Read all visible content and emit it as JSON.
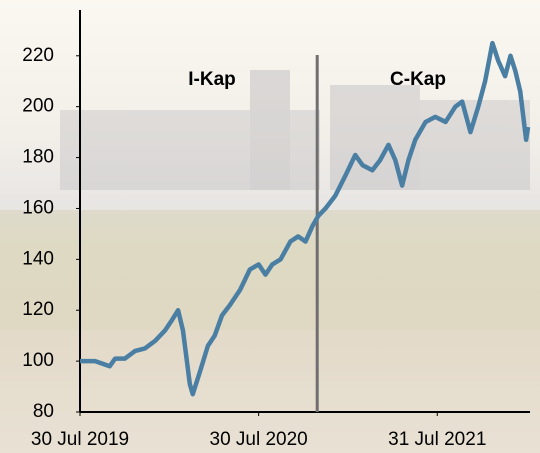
{
  "chart_data": {
    "type": "line",
    "annotations": [
      "I-Kap",
      "C-Kap"
    ],
    "divider_x": "2020-11-27",
    "x": [
      "2019-07-30",
      "2019-08-30",
      "2019-09-29",
      "2019-10-10",
      "2019-10-30",
      "2019-11-20",
      "2019-12-10",
      "2019-12-31",
      "2020-01-20",
      "2020-02-03",
      "2020-02-16",
      "2020-02-26",
      "2020-03-11",
      "2020-03-17",
      "2020-04-01",
      "2020-04-17",
      "2020-05-01",
      "2020-05-16",
      "2020-06-01",
      "2020-06-22",
      "2020-07-12",
      "2020-07-30",
      "2020-08-13",
      "2020-08-27",
      "2020-09-13",
      "2020-10-03",
      "2020-10-19",
      "2020-11-03",
      "2020-11-17",
      "2020-11-29",
      "2020-12-14",
      "2021-01-03",
      "2021-01-24",
      "2021-02-13",
      "2021-02-28",
      "2021-03-20",
      "2021-04-05",
      "2021-04-22",
      "2021-05-06",
      "2021-05-20",
      "2021-06-02",
      "2021-06-16",
      "2021-07-07",
      "2021-07-27",
      "2021-08-17",
      "2021-09-06",
      "2021-09-20",
      "2021-10-07",
      "2021-10-23",
      "2021-11-06",
      "2021-11-21",
      "2021-12-03",
      "2021-12-17",
      "2021-12-28",
      "2022-01-07",
      "2022-01-17",
      "2022-01-29",
      "2022-02-02"
    ],
    "series": [
      {
        "color": "#4a7fa3",
        "values": [
          100,
          100,
          98,
          101,
          101,
          104,
          105,
          108,
          112,
          116,
          120,
          112,
          91,
          87,
          96,
          106,
          110,
          118,
          122,
          128,
          136,
          138,
          134,
          138,
          140,
          147,
          149,
          147,
          153,
          157,
          160,
          165,
          173,
          181,
          177,
          175,
          179,
          185,
          179,
          169,
          179,
          187,
          194,
          196,
          194,
          200,
          202,
          190,
          200,
          210,
          225,
          218,
          212,
          220,
          214,
          206,
          187,
          192
        ]
      }
    ],
    "xlim": [
      "2019-07-30",
      "2022-02-06"
    ],
    "xticks": [
      {
        "value": "2019-07-30",
        "label": "30 Jul 2019"
      },
      {
        "value": "2020-07-30",
        "label": "30 Jul 2020"
      },
      {
        "value": "2021-07-31",
        "label": "31 Jul 2021"
      }
    ],
    "ylim": [
      80,
      238
    ],
    "yticks": [
      80,
      100,
      120,
      140,
      160,
      180,
      200,
      220
    ]
  }
}
